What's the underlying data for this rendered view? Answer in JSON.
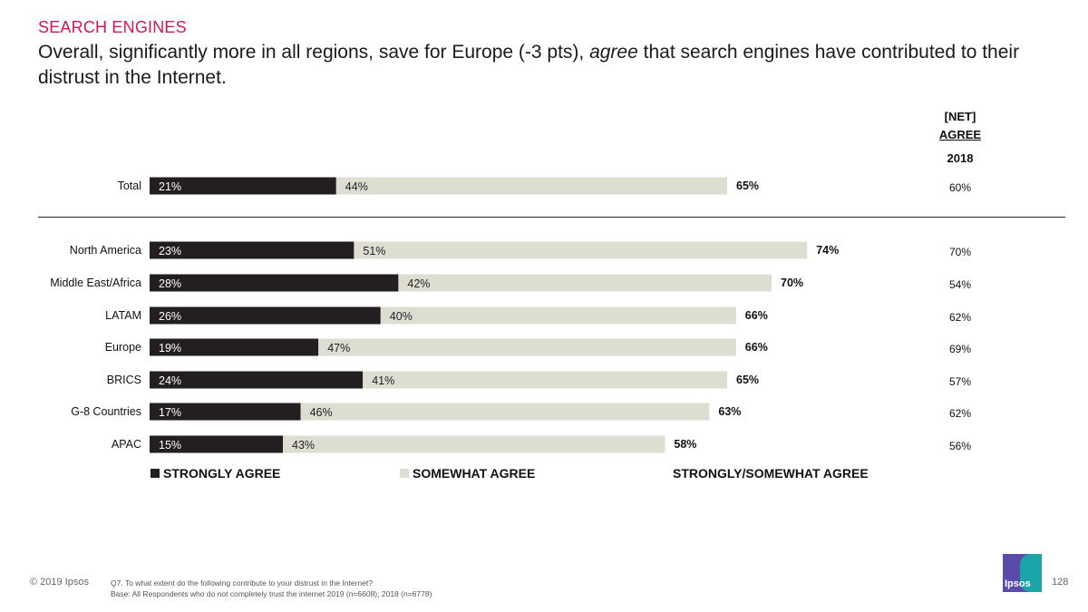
{
  "header": {
    "section": "SEARCH ENGINES",
    "headline_pre": "Overall, significantly more in all regions, save for Europe (-3 pts), ",
    "headline_em": "agree",
    "headline_post": " that search engines have contributed to their distrust in the Internet."
  },
  "net_column": {
    "line1": "[NET]",
    "line2": "AGREE",
    "year": "2018"
  },
  "chart_data": {
    "type": "bar",
    "orientation": "horizontal",
    "stacked": true,
    "categories": [
      "Total",
      "North America",
      "Middle East/Africa",
      "LATAM",
      "Europe",
      "BRICS",
      "G-8 Countries",
      "APAC"
    ],
    "series": [
      {
        "name": "STRONGLY AGREE",
        "color": "#231f20",
        "values": [
          21,
          23,
          28,
          26,
          19,
          24,
          17,
          15
        ]
      },
      {
        "name": "SOMEWHAT AGREE",
        "color": "#deddd1",
        "values": [
          44,
          51,
          42,
          40,
          47,
          41,
          46,
          43
        ]
      }
    ],
    "totals_name": "STRONGLY/SOMEWHAT AGREE",
    "totals": [
      65,
      74,
      70,
      66,
      66,
      65,
      63,
      58
    ],
    "net_2018": [
      60,
      70,
      54,
      62,
      69,
      57,
      62,
      56
    ],
    "value_suffix": "%",
    "xlim": [
      0,
      100
    ],
    "grid": false,
    "legend_position": "bottom"
  },
  "footer": {
    "copyright": "© 2019 Ipsos",
    "question": "Q7.  To what extent do the following contribute to your distrust in the Internet?",
    "base": "Base: All Respondents who do not completely trust the internet 2019 (n=6608); 2018 (n=6778)",
    "logo_text": "Ipsos",
    "page": "128"
  }
}
